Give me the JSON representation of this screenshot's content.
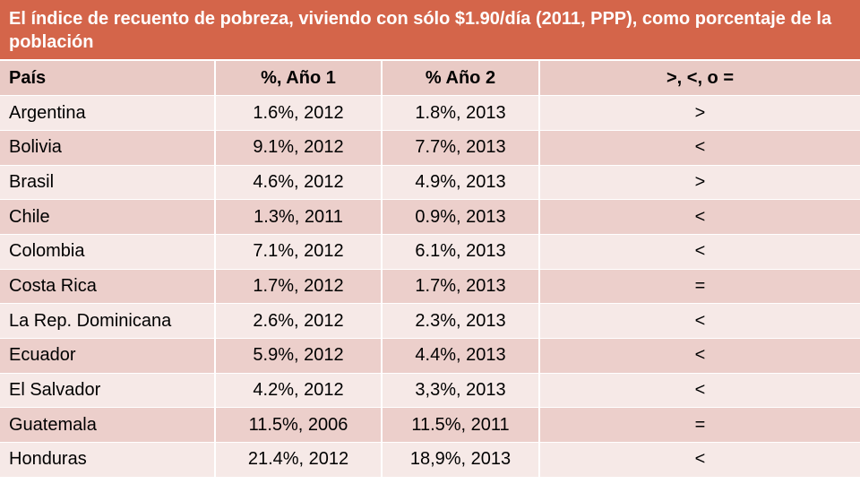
{
  "title": "El índice de recuento de pobreza, viviendo con sólo $1.90/día (2011, PPP), como porcentaje de la población",
  "headers": [
    "País",
    "%, Año 1",
    "% Año 2",
    ">, <, o ="
  ],
  "rows": [
    {
      "country": "Argentina",
      "year1": "1.6%, 2012",
      "year2": "1.8%, 2013",
      "compare": ">"
    },
    {
      "country": "Bolivia",
      "year1": "9.1%, 2012",
      "year2": "7.7%, 2013",
      "compare": "<"
    },
    {
      "country": "Brasil",
      "year1": "4.6%, 2012",
      "year2": "4.9%, 2013",
      "compare": ">"
    },
    {
      "country": "Chile",
      "year1": "1.3%, 2011",
      "year2": "0.9%, 2013",
      "compare": "<"
    },
    {
      "country": "Colombia",
      "year1": "7.1%, 2012",
      "year2": "6.1%, 2013",
      "compare": "<"
    },
    {
      "country": "Costa Rica",
      "year1": "1.7%, 2012",
      "year2": "1.7%, 2013",
      "compare": "="
    },
    {
      "country": "La Rep. Dominicana",
      "year1": "2.6%, 2012",
      "year2": "2.3%, 2013",
      "compare": "<"
    },
    {
      "country": "Ecuador",
      "year1": "5.9%, 2012",
      "year2": "4.4%, 2013",
      "compare": "<"
    },
    {
      "country": "El Salvador",
      "year1": "4.2%, 2012",
      "year2": "3,3%, 2013",
      "compare": "<"
    },
    {
      "country": "Guatemala",
      "year1": "11.5%, 2006",
      "year2": "11.5%, 2011",
      "compare": "="
    },
    {
      "country": "Honduras",
      "year1": "21.4%, 2012",
      "year2": "18,9%, 2013",
      "compare": "<"
    }
  ],
  "colors": {
    "title_bg": "#d4654a",
    "header_bg": "#e9cac5",
    "row_light": "#f6e9e7",
    "row_dark": "#eccfcb"
  }
}
